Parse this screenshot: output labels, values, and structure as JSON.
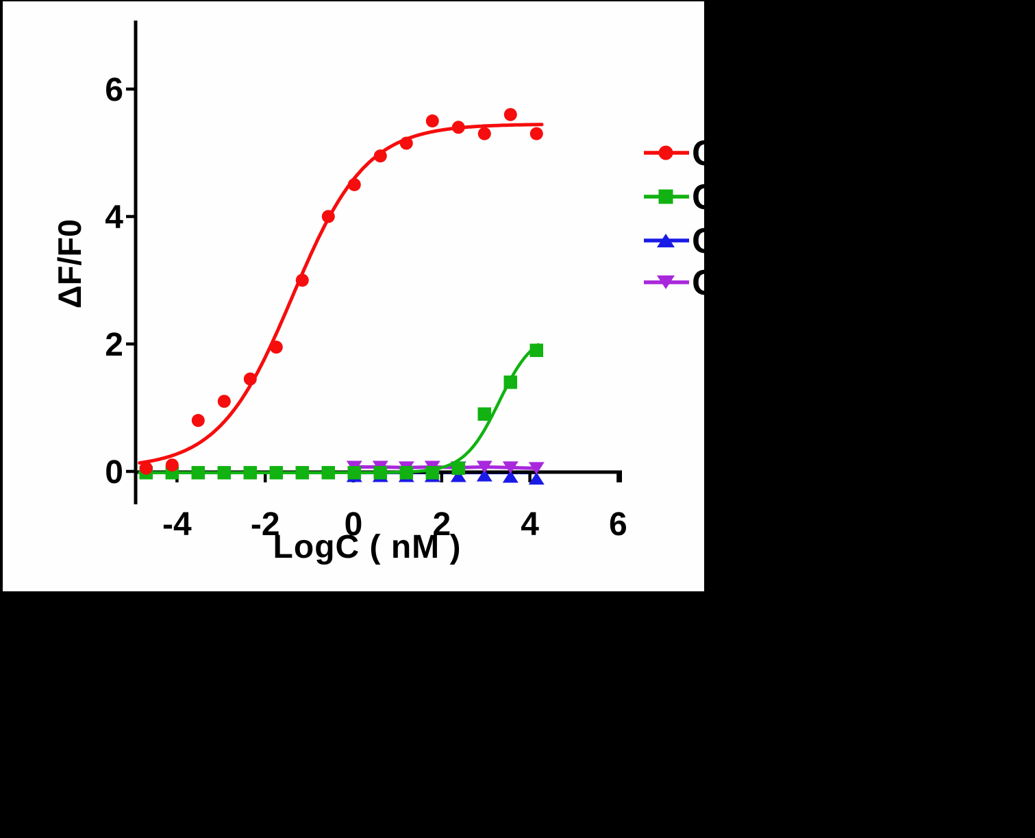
{
  "chart_data": {
    "type": "scatter",
    "title": "",
    "xlabel": "LogC ( nM )",
    "ylabel": "ΔF/F0",
    "x_ticks": [
      -4,
      -2,
      0,
      2,
      4,
      6
    ],
    "y_ticks": [
      0,
      2,
      4,
      6
    ],
    "xlim": [
      -4.95,
      6.1
    ],
    "ylim": [
      -0.55,
      7.05
    ],
    "grid": false,
    "legend_position": "right-outside",
    "legend_labels_clipped": true,
    "series": [
      {
        "name": "red-circles",
        "color": "#f60d0d",
        "marker": "circle",
        "x": [
          -4.7,
          -4.11,
          -3.52,
          -2.93,
          -2.34,
          -1.75,
          -1.16,
          -0.57,
          0.02,
          0.61,
          1.2,
          1.79,
          2.38,
          2.97,
          3.56,
          4.15
        ],
        "y": [
          0.05,
          0.1,
          0.8,
          1.1,
          1.45,
          1.95,
          3.0,
          4.0,
          4.5,
          4.95,
          5.15,
          5.5,
          5.4,
          5.3,
          5.6,
          5.3
        ],
        "fit": {
          "type": "sigmoid",
          "bottom": 0.05,
          "top": 5.45,
          "logec50": -1.38,
          "hill": 0.52,
          "from": -4.85,
          "to": 4.3
        }
      },
      {
        "name": "green-squares",
        "color": "#11b211",
        "marker": "square",
        "x": [
          -4.7,
          -4.11,
          -3.52,
          -2.93,
          -2.34,
          -1.75,
          -1.16,
          -0.57,
          0.02,
          0.61,
          1.2,
          1.79,
          2.38,
          2.97,
          3.56,
          4.15
        ],
        "y": [
          -0.02,
          -0.02,
          -0.02,
          -0.02,
          -0.02,
          -0.02,
          -0.02,
          -0.02,
          -0.02,
          -0.02,
          -0.02,
          -0.02,
          0.05,
          0.9,
          1.4,
          1.9
        ],
        "fit": {
          "type": "sigmoid",
          "bottom": -0.02,
          "top": 2.2,
          "logec50": 3.3,
          "hill": 1.1,
          "from": -4.85,
          "to": 4.22
        }
      },
      {
        "name": "blue-triangles-up",
        "color": "#1a1ae6",
        "marker": "triangle-up",
        "x": [
          0.02,
          0.61,
          1.2,
          1.79,
          2.38,
          2.97,
          3.56,
          4.15
        ],
        "y": [
          -0.07,
          -0.07,
          -0.07,
          -0.07,
          -0.07,
          -0.06,
          -0.08,
          -0.11
        ],
        "line_y": -0.02
      },
      {
        "name": "purple-triangles-down",
        "color": "#a828dc",
        "marker": "triangle-down",
        "x": [
          0.02,
          0.61,
          1.2,
          1.79,
          2.38,
          2.97,
          3.56,
          4.15
        ],
        "y": [
          0.07,
          0.07,
          0.06,
          0.07,
          0.06,
          0.07,
          0.06,
          0.05
        ],
        "connect": true
      }
    ],
    "legend": [
      {
        "label": "C",
        "color": "#f60d0d",
        "marker": "circle"
      },
      {
        "label": "C",
        "color": "#11b211",
        "marker": "square"
      },
      {
        "label": "C",
        "color": "#1a1ae6",
        "marker": "triangle-up"
      },
      {
        "label": "C",
        "color": "#a828dc",
        "marker": "triangle-down"
      }
    ]
  }
}
